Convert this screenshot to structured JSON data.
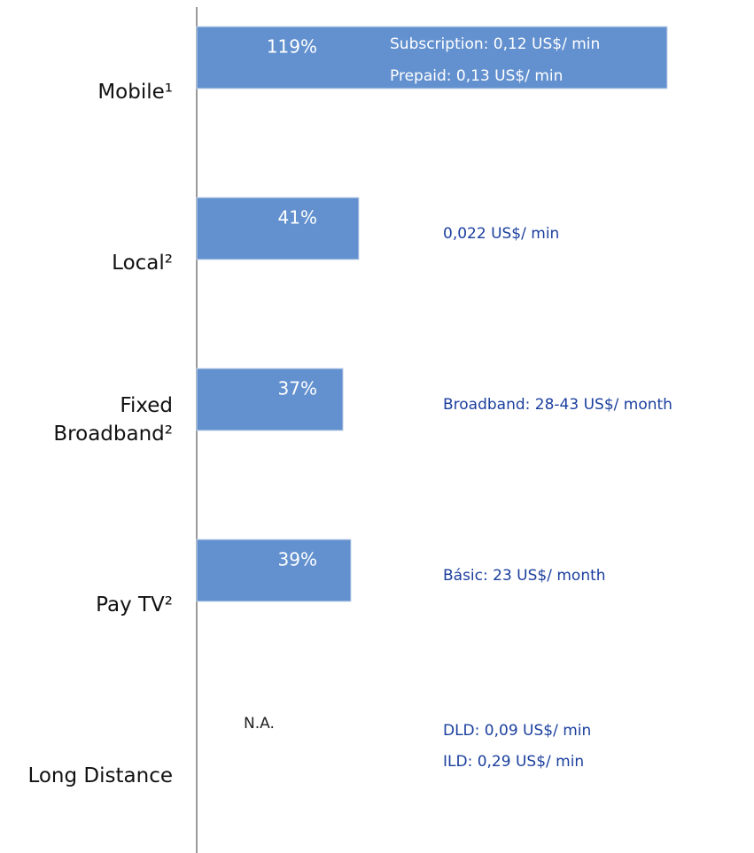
{
  "chart_data": {
    "type": "bar",
    "orientation": "horizontal",
    "categories": [
      "Mobile¹",
      "Local²",
      "Fixed\nBroadband²",
      "Pay TV²",
      "Long Distance"
    ],
    "values": [
      119,
      41,
      37,
      39,
      null
    ],
    "value_labels": [
      "119%",
      "41%",
      "37%",
      "39%",
      "N.A."
    ],
    "color": "#6391cf",
    "notes": [
      [
        "Subscription: 0,12 US$/ min",
        "Prepaid: 0,13 US$/ min"
      ],
      [
        "0,022 US$/ min"
      ],
      [
        "Broadband: 28-43 US$/ month"
      ],
      [
        "Básic: 23 US$/ month"
      ],
      [
        "DLD: 0,09 US$/ min",
        "ILD: 0,29 US$/ min"
      ]
    ],
    "note_color": "#1b3f9e"
  }
}
